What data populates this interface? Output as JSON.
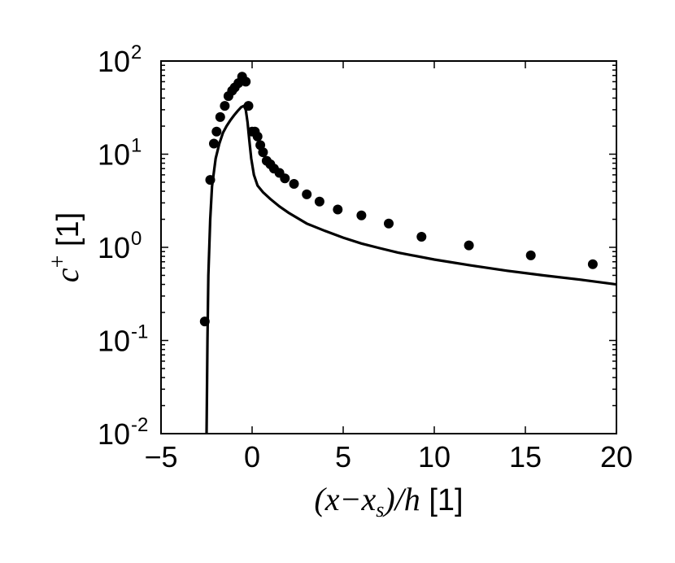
{
  "chart_data": {
    "type": "scatter",
    "xlabel": "(x−x_s)/h [1]",
    "xlabel_parts": {
      "math": "(x−x",
      "sub": "s",
      "math_end": ")/h",
      "unit": " [1]"
    },
    "ylabel": "c^+ [1]",
    "ylabel_parts": {
      "math": "c",
      "sup": "+",
      "unit": " [1]"
    },
    "xlim": [
      -5,
      20
    ],
    "ylim": [
      0.01,
      100
    ],
    "yscale": "log",
    "grid": false,
    "x_ticks": [
      {
        "value": -5,
        "label": "−5"
      },
      {
        "value": 0,
        "label": "0"
      },
      {
        "value": 5,
        "label": "5"
      },
      {
        "value": 10,
        "label": "10"
      },
      {
        "value": 15,
        "label": "15"
      },
      {
        "value": 20,
        "label": "20"
      }
    ],
    "y_ticks": [
      {
        "value": 0.01,
        "base": "10",
        "exp": "-2"
      },
      {
        "value": 0.1,
        "base": "10",
        "exp": "-1"
      },
      {
        "value": 1,
        "base": "10",
        "exp": "0"
      },
      {
        "value": 10,
        "base": "10",
        "exp": "1"
      },
      {
        "value": 100,
        "base": "10",
        "exp": "2"
      }
    ],
    "series": [
      {
        "type": "scatter",
        "color": "#000000",
        "points": [
          [
            -2.6,
            0.16
          ],
          [
            -2.3,
            5.3
          ],
          [
            -2.1,
            13
          ],
          [
            -1.95,
            17.5
          ],
          [
            -1.75,
            25
          ],
          [
            -1.5,
            33
          ],
          [
            -1.3,
            42
          ],
          [
            -1.1,
            48
          ],
          [
            -0.95,
            52
          ],
          [
            -0.75,
            58
          ],
          [
            -0.55,
            68
          ],
          [
            -0.35,
            60
          ],
          [
            -0.2,
            33
          ],
          [
            0.0,
            17.5
          ],
          [
            0.15,
            17.5
          ],
          [
            0.3,
            15.5
          ],
          [
            0.45,
            12.5
          ],
          [
            0.6,
            10.5
          ],
          [
            0.8,
            8.5
          ],
          [
            1.0,
            7.8
          ],
          [
            1.2,
            7.0
          ],
          [
            1.5,
            6.3
          ],
          [
            1.8,
            5.5
          ],
          [
            2.3,
            4.8
          ],
          [
            3.0,
            3.7
          ],
          [
            3.7,
            3.1
          ],
          [
            4.7,
            2.55
          ],
          [
            6.0,
            2.2
          ],
          [
            7.5,
            1.8
          ],
          [
            9.3,
            1.3
          ],
          [
            11.9,
            1.05
          ],
          [
            15.3,
            0.82
          ],
          [
            18.7,
            0.66
          ]
        ]
      },
      {
        "type": "line",
        "color": "#000000",
        "points": [
          [
            -2.5,
            0.01
          ],
          [
            -2.45,
            0.1
          ],
          [
            -2.4,
            0.5
          ],
          [
            -2.3,
            2.0
          ],
          [
            -2.2,
            4.5
          ],
          [
            -2.0,
            9.0
          ],
          [
            -1.8,
            13.0
          ],
          [
            -1.6,
            17.0
          ],
          [
            -1.4,
            20.0
          ],
          [
            -1.2,
            23.0
          ],
          [
            -1.0,
            26.0
          ],
          [
            -0.8,
            29.0
          ],
          [
            -0.6,
            32.0
          ],
          [
            -0.45,
            33.0
          ],
          [
            -0.35,
            30.0
          ],
          [
            -0.25,
            22.0
          ],
          [
            -0.15,
            14.0
          ],
          [
            -0.05,
            9.0
          ],
          [
            0.1,
            6.0
          ],
          [
            0.3,
            4.6
          ],
          [
            0.6,
            3.9
          ],
          [
            1.0,
            3.3
          ],
          [
            1.5,
            2.75
          ],
          [
            2.0,
            2.35
          ],
          [
            3.0,
            1.8
          ],
          [
            4.0,
            1.5
          ],
          [
            5.0,
            1.27
          ],
          [
            6.0,
            1.1
          ],
          [
            7.0,
            0.98
          ],
          [
            8.0,
            0.88
          ],
          [
            10.0,
            0.74
          ],
          [
            12.0,
            0.64
          ],
          [
            14.0,
            0.56
          ],
          [
            16.0,
            0.5
          ],
          [
            18.0,
            0.45
          ],
          [
            20.0,
            0.4
          ]
        ]
      }
    ]
  }
}
